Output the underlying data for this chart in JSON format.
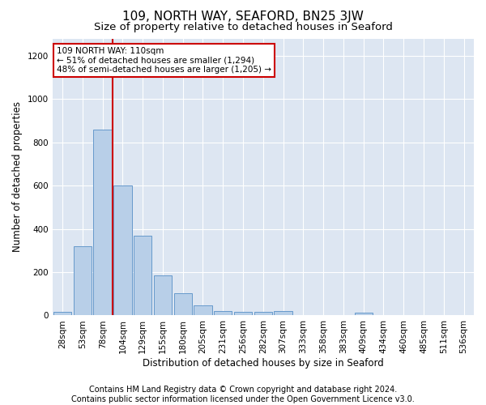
{
  "title": "109, NORTH WAY, SEAFORD, BN25 3JW",
  "subtitle": "Size of property relative to detached houses in Seaford",
  "xlabel": "Distribution of detached houses by size in Seaford",
  "ylabel": "Number of detached properties",
  "footer_line1": "Contains HM Land Registry data © Crown copyright and database right 2024.",
  "footer_line2": "Contains public sector information licensed under the Open Government Licence v3.0.",
  "bar_labels": [
    "28sqm",
    "53sqm",
    "78sqm",
    "104sqm",
    "129sqm",
    "155sqm",
    "180sqm",
    "205sqm",
    "231sqm",
    "256sqm",
    "282sqm",
    "307sqm",
    "333sqm",
    "358sqm",
    "383sqm",
    "409sqm",
    "434sqm",
    "460sqm",
    "485sqm",
    "511sqm",
    "536sqm"
  ],
  "bar_values": [
    18,
    320,
    860,
    600,
    370,
    185,
    103,
    48,
    22,
    18,
    18,
    20,
    0,
    0,
    0,
    13,
    0,
    0,
    0,
    0,
    0
  ],
  "bar_color": "#b8cfe8",
  "bar_edge_color": "#6699cc",
  "background_color": "#dde6f2",
  "ylim": [
    0,
    1280
  ],
  "yticks": [
    0,
    200,
    400,
    600,
    800,
    1000,
    1200
  ],
  "vline_x_index": 3,
  "vline_color": "#cc0000",
  "annotation_line1": "109 NORTH WAY: 110sqm",
  "annotation_line2": "← 51% of detached houses are smaller (1,294)",
  "annotation_line3": "48% of semi-detached houses are larger (1,205) →",
  "title_fontsize": 11,
  "subtitle_fontsize": 9.5,
  "axis_label_fontsize": 8.5,
  "tick_fontsize": 7.5,
  "annotation_fontsize": 7.5,
  "footer_fontsize": 7
}
